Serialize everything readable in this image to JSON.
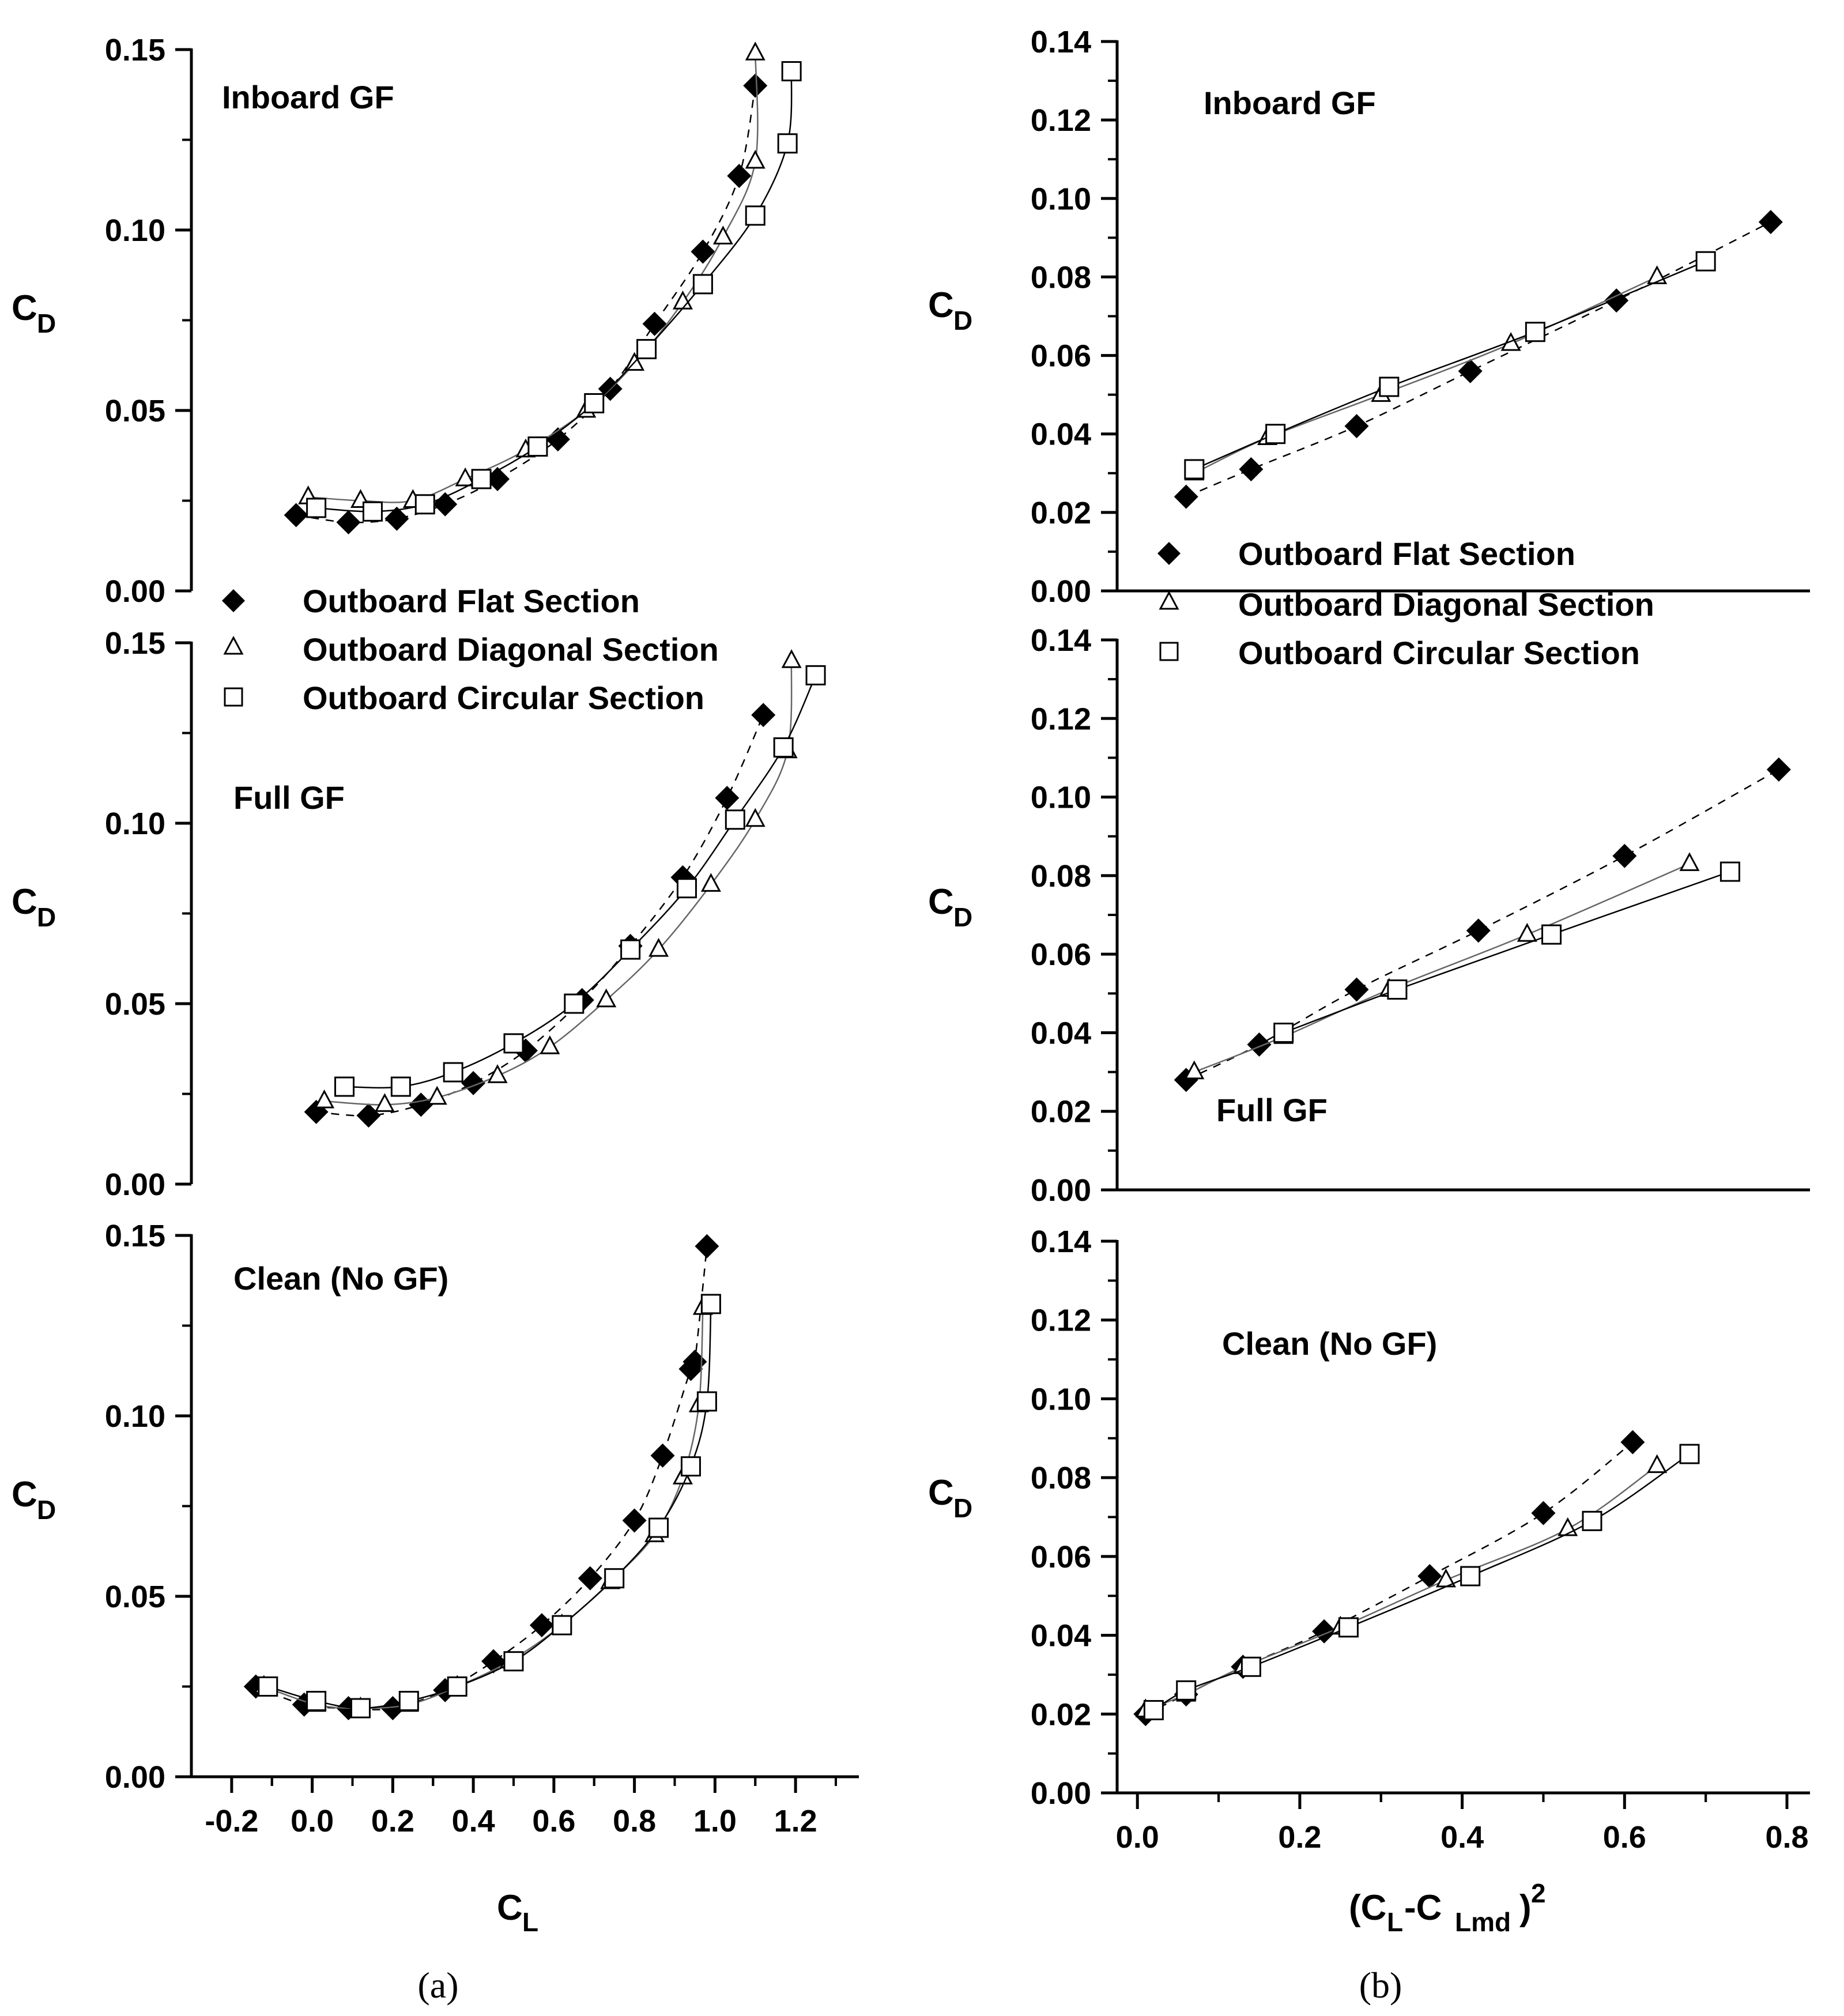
{
  "figure": {
    "caption_a": "(a)",
    "caption_b": "(b)"
  },
  "legend": {
    "items": [
      {
        "label": "Outboard Flat Section",
        "marker": "diamond-filled",
        "line": "dashed"
      },
      {
        "label": "Outboard Diagonal Section",
        "marker": "triangle-open",
        "line": "solid"
      },
      {
        "label": "Outboard Circular Section",
        "marker": "square-open",
        "line": "solid"
      }
    ]
  },
  "colors": {
    "flat": "#000000",
    "diagonal_line": "#555555",
    "circular_line": "#000000"
  },
  "chart_data": [
    {
      "id": "a-top",
      "type": "scatter",
      "title": "Inboard GF",
      "xlabel": "",
      "ylabel_main": "C",
      "ylabel_sub": "D",
      "xlim": [
        -0.3,
        1.3
      ],
      "ylim": [
        0.0,
        0.15
      ],
      "yticks": [
        "0.00",
        "0.05",
        "0.10",
        "0.15"
      ],
      "xticks": [],
      "series": [
        {
          "name": "Outboard Flat Section",
          "x": [
            -0.04,
            0.09,
            0.21,
            0.33,
            0.46,
            0.61,
            0.74,
            0.85,
            0.97,
            1.06,
            1.1
          ],
          "y": [
            0.021,
            0.019,
            0.02,
            0.024,
            0.031,
            0.042,
            0.056,
            0.074,
            0.094,
            0.115,
            0.14
          ]
        },
        {
          "name": "Outboard Diagonal Section",
          "x": [
            -0.01,
            0.12,
            0.25,
            0.38,
            0.53,
            0.68,
            0.8,
            0.92,
            1.02,
            1.1,
            1.1
          ],
          "y": [
            0.026,
            0.025,
            0.025,
            0.031,
            0.039,
            0.05,
            0.063,
            0.08,
            0.098,
            0.119,
            0.149
          ]
        },
        {
          "name": "Outboard Circular Section",
          "x": [
            0.01,
            0.15,
            0.28,
            0.42,
            0.56,
            0.7,
            0.83,
            0.97,
            1.1,
            1.18,
            1.19
          ],
          "y": [
            0.023,
            0.022,
            0.024,
            0.031,
            0.04,
            0.052,
            0.067,
            0.085,
            0.104,
            0.124,
            0.144
          ]
        }
      ]
    },
    {
      "id": "a-mid",
      "type": "scatter",
      "title": "Full GF",
      "xlabel": "",
      "ylabel_main": "C",
      "ylabel_sub": "D",
      "xlim": [
        -0.3,
        1.3
      ],
      "ylim": [
        0.0,
        0.15
      ],
      "yticks": [
        "0.00",
        "0.05",
        "0.10",
        "0.15"
      ],
      "xticks": [],
      "series": [
        {
          "name": "Outboard Flat Section",
          "x": [
            0.01,
            0.14,
            0.27,
            0.4,
            0.53,
            0.67,
            0.79,
            0.92,
            1.03,
            1.12
          ],
          "y": [
            0.02,
            0.019,
            0.022,
            0.028,
            0.037,
            0.051,
            0.066,
            0.085,
            0.107,
            0.13
          ]
        },
        {
          "name": "Outboard Diagonal Section",
          "x": [
            0.03,
            0.18,
            0.31,
            0.46,
            0.59,
            0.73,
            0.86,
            0.99,
            1.1,
            1.18,
            1.19
          ],
          "y": [
            0.023,
            0.022,
            0.024,
            0.03,
            0.038,
            0.051,
            0.065,
            0.083,
            0.101,
            0.12,
            0.145
          ]
        },
        {
          "name": "Outboard Circular Section",
          "x": [
            0.08,
            0.22,
            0.35,
            0.5,
            0.65,
            0.79,
            0.93,
            1.05,
            1.17,
            1.25
          ],
          "y": [
            0.027,
            0.027,
            0.031,
            0.039,
            0.05,
            0.065,
            0.082,
            0.101,
            0.121,
            0.141
          ]
        }
      ]
    },
    {
      "id": "a-bottom",
      "type": "scatter",
      "title": "Clean (No GF)",
      "xlabel_main": "C",
      "xlabel_sub": "L",
      "ylabel_main": "C",
      "ylabel_sub": "D",
      "xlim": [
        -0.3,
        1.3
      ],
      "ylim": [
        0.0,
        0.15
      ],
      "yticks": [
        "0.00",
        "0.05",
        "0.10",
        "0.15"
      ],
      "xticks": [
        "-0.2",
        "0.0",
        "0.2",
        "0.4",
        "0.6",
        "0.8",
        "1.0",
        "1.2"
      ],
      "series": [
        {
          "name": "Outboard Flat Section",
          "x": [
            -0.14,
            -0.02,
            0.09,
            0.2,
            0.33,
            0.45,
            0.57,
            0.69,
            0.8,
            0.87,
            0.94,
            0.95,
            0.98
          ],
          "y": [
            0.025,
            0.02,
            0.019,
            0.019,
            0.024,
            0.032,
            0.042,
            0.055,
            0.071,
            0.089,
            0.113,
            0.115,
            0.147
          ]
        },
        {
          "name": "Outboard Diagonal Section",
          "x": [
            -0.12,
            0.01,
            0.12,
            0.24,
            0.36,
            0.49,
            0.62,
            0.74,
            0.85,
            0.92,
            0.96,
            0.97
          ],
          "y": [
            0.025,
            0.02,
            0.019,
            0.02,
            0.025,
            0.032,
            0.042,
            0.054,
            0.067,
            0.083,
            0.103,
            0.13
          ]
        },
        {
          "name": "Outboard Circular Section",
          "x": [
            -0.11,
            0.01,
            0.12,
            0.24,
            0.36,
            0.5,
            0.62,
            0.75,
            0.86,
            0.94,
            0.98,
            0.99
          ],
          "y": [
            0.025,
            0.021,
            0.019,
            0.021,
            0.025,
            0.032,
            0.042,
            0.055,
            0.069,
            0.086,
            0.104,
            0.131
          ]
        }
      ]
    },
    {
      "id": "b-top",
      "type": "scatter",
      "title": "Inboard GF",
      "xlabel": "",
      "ylabel_main": "C",
      "ylabel_sub": "D",
      "xlim": [
        -0.025,
        0.8
      ],
      "ylim": [
        0.0,
        0.14
      ],
      "yticks": [
        "0.00",
        "0.02",
        "0.04",
        "0.06",
        "0.08",
        "0.10",
        "0.12",
        "0.14"
      ],
      "xticks": [],
      "series": [
        {
          "name": "Outboard Flat Section",
          "x": [
            0.06,
            0.14,
            0.27,
            0.41,
            0.59,
            0.78
          ],
          "y": [
            0.024,
            0.031,
            0.042,
            0.056,
            0.074,
            0.094
          ]
        },
        {
          "name": "Outboard Diagonal Section",
          "x": [
            0.07,
            0.16,
            0.3,
            0.46,
            0.64
          ],
          "y": [
            0.03,
            0.039,
            0.05,
            0.063,
            0.08
          ]
        },
        {
          "name": "Outboard Circular Section",
          "x": [
            0.07,
            0.17,
            0.31,
            0.49,
            0.7
          ],
          "y": [
            0.031,
            0.04,
            0.052,
            0.066,
            0.084
          ]
        }
      ]
    },
    {
      "id": "b-mid",
      "type": "scatter",
      "title": "Full GF",
      "xlabel": "",
      "ylabel_main": "C",
      "ylabel_sub": "D",
      "xlim": [
        -0.025,
        0.8
      ],
      "ylim": [
        0.0,
        0.14
      ],
      "yticks": [
        "0.00",
        "0.02",
        "0.04",
        "0.06",
        "0.08",
        "0.10",
        "0.12",
        "0.14"
      ],
      "xticks": [],
      "series": [
        {
          "name": "Outboard Flat Section",
          "x": [
            0.06,
            0.15,
            0.27,
            0.42,
            0.6,
            0.79
          ],
          "y": [
            0.028,
            0.037,
            0.051,
            0.066,
            0.085,
            0.107
          ]
        },
        {
          "name": "Outboard Diagonal Section",
          "x": [
            0.07,
            0.18,
            0.31,
            0.48,
            0.68
          ],
          "y": [
            0.03,
            0.039,
            0.051,
            0.065,
            0.083
          ]
        },
        {
          "name": "Outboard Circular Section",
          "x": [
            0.18,
            0.32,
            0.51,
            0.73
          ],
          "y": [
            0.04,
            0.051,
            0.065,
            0.081
          ]
        }
      ]
    },
    {
      "id": "b-bottom",
      "type": "scatter",
      "title": "Clean (No GF)",
      "xlabel_main": "(C",
      "xlabel_l": "L",
      "xlabel_mid": "-C",
      "xlabel_lmd": "Lmd",
      "xlabel_end": ")",
      "xlabel_sup": "2",
      "ylabel_main": "C",
      "ylabel_sub": "D",
      "xlim": [
        -0.025,
        0.8
      ],
      "ylim": [
        0.0,
        0.14
      ],
      "yticks": [
        "0.00",
        "0.02",
        "0.04",
        "0.06",
        "0.08",
        "0.10",
        "0.12",
        "0.14"
      ],
      "xticks": [
        "0.0",
        "0.2",
        "0.4",
        "0.6",
        "0.8"
      ],
      "series": [
        {
          "name": "Outboard Flat Section",
          "x": [
            0.01,
            0.06,
            0.13,
            0.23,
            0.36,
            0.5,
            0.61
          ],
          "y": [
            0.02,
            0.025,
            0.032,
            0.041,
            0.055,
            0.071,
            0.089
          ]
        },
        {
          "name": "Outboard Diagonal Section",
          "x": [
            0.01,
            0.06,
            0.13,
            0.25,
            0.38,
            0.53,
            0.64
          ],
          "y": [
            0.021,
            0.025,
            0.032,
            0.042,
            0.054,
            0.067,
            0.083
          ]
        },
        {
          "name": "Outboard Circular Section",
          "x": [
            0.02,
            0.06,
            0.14,
            0.26,
            0.41,
            0.56,
            0.68
          ],
          "y": [
            0.021,
            0.026,
            0.032,
            0.042,
            0.055,
            0.069,
            0.086
          ]
        }
      ]
    }
  ]
}
